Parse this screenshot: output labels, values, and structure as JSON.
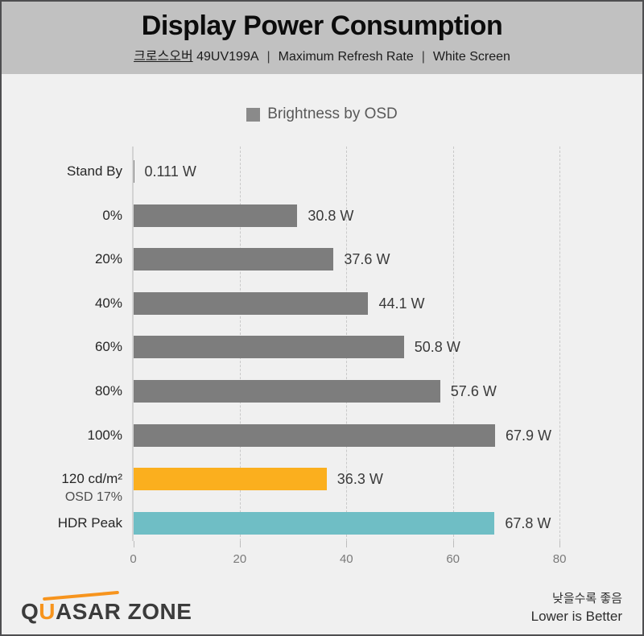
{
  "header": {
    "title": "Display Power Consumption",
    "model_link": "크로스오버",
    "model_rest": " 49UV199A",
    "separator": "|",
    "condition_1": "Maximum Refresh Rate",
    "condition_2": "White Screen"
  },
  "legend": {
    "label": "Brightness by OSD",
    "swatch_color": "#8a8a8a"
  },
  "chart_data": {
    "type": "bar",
    "orientation": "horizontal",
    "title": "Display Power Consumption",
    "subtitle": "크로스오버 49UV199A | Maximum Refresh Rate | White Screen",
    "series_name": "Brightness by OSD",
    "unit": "W",
    "categories": [
      "Stand By",
      "0%",
      "20%",
      "40%",
      "60%",
      "80%",
      "100%",
      "120 cd/m²",
      "HDR Peak"
    ],
    "category_sub_labels": [
      "",
      "",
      "",
      "",
      "",
      "",
      "",
      "OSD 17%",
      ""
    ],
    "values": [
      0.111,
      30.8,
      37.6,
      44.1,
      50.8,
      57.6,
      67.9,
      36.3,
      67.8
    ],
    "value_labels": [
      "0.111 W",
      "30.8 W",
      "37.6 W",
      "44.1 W",
      "50.8 W",
      "57.6 W",
      "67.9 W",
      "36.3 W",
      "67.8 W"
    ],
    "bar_colors": [
      "#7d7d7d",
      "#7d7d7d",
      "#7d7d7d",
      "#7d7d7d",
      "#7d7d7d",
      "#7d7d7d",
      "#7d7d7d",
      "#fbaf1e",
      "#6fbec5"
    ],
    "xlim": [
      0,
      80
    ],
    "x_ticks": [
      0,
      20,
      40,
      60,
      80
    ],
    "grid": "vertical-dashed",
    "legend_position": "top-center",
    "lower_is_better": true
  },
  "footer": {
    "logo": {
      "part_q": "Q",
      "part_u": "U",
      "part_rest": "ASAR ZONE"
    },
    "note_ko": "낮을수록 좋음",
    "note_en": "Lower is Better"
  },
  "colors": {
    "header_bg": "#c1c1c1",
    "body_bg": "#f0f0f0",
    "bar_gray": "#7d7d7d",
    "bar_orange": "#fbaf1e",
    "bar_teal": "#6fbec5",
    "logo_orange": "#f7941d",
    "frame_border": "#4e4e50"
  }
}
